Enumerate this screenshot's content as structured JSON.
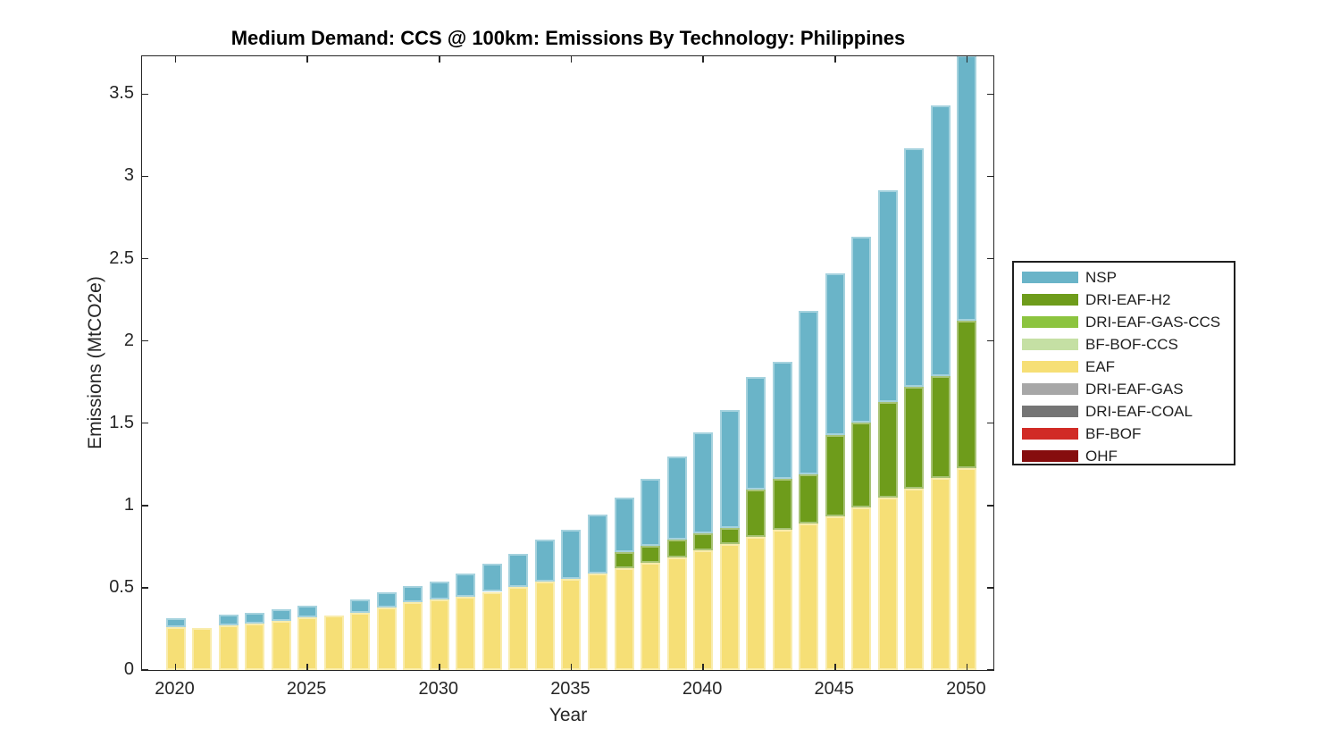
{
  "figure": {
    "title": "Medium Demand: CCS @ 100km: Emissions By Technology: Philippines",
    "xlabel": "Year",
    "ylabel": "Emissions (MtCO2e)"
  },
  "legend": {
    "position": "right-outside",
    "entries": [
      {
        "label": "NSP",
        "color": "#6AB4C8"
      },
      {
        "label": "DRI-EAF-H2",
        "color": "#6E9C1B"
      },
      {
        "label": "DRI-EAF-GAS-CCS",
        "color": "#8CC43F"
      },
      {
        "label": "BF-BOF-CCS",
        "color": "#C5E0A4"
      },
      {
        "label": "EAF",
        "color": "#F6DF76"
      },
      {
        "label": "DRI-EAF-GAS",
        "color": "#A7A7A7"
      },
      {
        "label": "DRI-EAF-COAL",
        "color": "#757575"
      },
      {
        "label": "BF-BOF",
        "color": "#D12B26"
      },
      {
        "label": "OHF",
        "color": "#860D0E"
      }
    ]
  },
  "chart_data": {
    "type": "bar",
    "stacked": true,
    "title": "Medium Demand: CCS @ 100km: Emissions By Technology: Philippines",
    "xlabel": "Year",
    "ylabel": "Emissions (MtCO2e)",
    "x": [
      2020,
      2021,
      2022,
      2023,
      2024,
      2025,
      2026,
      2027,
      2028,
      2029,
      2030,
      2031,
      2032,
      2033,
      2034,
      2035,
      2036,
      2037,
      2038,
      2039,
      2040,
      2041,
      2042,
      2043,
      2044,
      2045,
      2046,
      2047,
      2048,
      2049,
      2050
    ],
    "xticks": [
      2020,
      2025,
      2030,
      2035,
      2040,
      2045,
      2050
    ],
    "ytick_labels": [
      "0",
      "0.5",
      "1",
      "1.5",
      "2",
      "2.5",
      "3",
      "3.5"
    ],
    "yticks": [
      0,
      0.5,
      1,
      1.5,
      2,
      2.5,
      3,
      3.5
    ],
    "ylim": [
      0,
      3.73
    ],
    "grid": false,
    "note": "2050 bar exceeds the y-axis limit and is clipped flush with the top of the axes (total ~3.74 visible).",
    "stack_order_bottom_to_top": [
      "OHF",
      "BF-BOF",
      "DRI-EAF-COAL",
      "DRI-EAF-GAS",
      "EAF",
      "BF-BOF-CCS",
      "DRI-EAF-GAS-CCS",
      "DRI-EAF-H2",
      "NSP"
    ],
    "series": [
      {
        "name": "NSP",
        "color": "#6AB4C8",
        "values": [
          0.055,
          0,
          0.065,
          0.065,
          0.07,
          0.07,
          0,
          0.08,
          0.09,
          0.1,
          0.105,
          0.14,
          0.17,
          0.2,
          0.255,
          0.3,
          0.36,
          0.335,
          0.405,
          0.505,
          0.615,
          0.715,
          0.685,
          0.715,
          0.995,
          0.98,
          1.13,
          1.285,
          1.45,
          1.645,
          1.61
        ]
      },
      {
        "name": "DRI-EAF-H2",
        "color": "#6E9C1B",
        "values": [
          0,
          0,
          0,
          0,
          0,
          0,
          0,
          0,
          0,
          0,
          0,
          0,
          0,
          0,
          0,
          0,
          0,
          0.095,
          0.105,
          0.105,
          0.105,
          0.1,
          0.285,
          0.31,
          0.3,
          0.495,
          0.515,
          0.58,
          0.62,
          0.62,
          0.9
        ]
      },
      {
        "name": "DRI-EAF-GAS-CCS",
        "color": "#8CC43F",
        "values": [
          0,
          0,
          0,
          0,
          0,
          0,
          0,
          0,
          0,
          0,
          0,
          0,
          0,
          0,
          0,
          0,
          0,
          0,
          0,
          0,
          0,
          0,
          0,
          0,
          0,
          0,
          0,
          0,
          0,
          0,
          0
        ]
      },
      {
        "name": "BF-BOF-CCS",
        "color": "#C5E0A4",
        "values": [
          0,
          0,
          0,
          0,
          0,
          0,
          0,
          0,
          0,
          0,
          0,
          0,
          0,
          0,
          0,
          0,
          0,
          0,
          0,
          0,
          0,
          0,
          0,
          0,
          0,
          0,
          0,
          0,
          0,
          0,
          0
        ]
      },
      {
        "name": "EAF",
        "color": "#F6DF76",
        "values": [
          0.26,
          0.255,
          0.27,
          0.285,
          0.3,
          0.32,
          0.33,
          0.35,
          0.38,
          0.41,
          0.43,
          0.445,
          0.475,
          0.505,
          0.535,
          0.555,
          0.585,
          0.62,
          0.65,
          0.685,
          0.725,
          0.765,
          0.81,
          0.85,
          0.89,
          0.935,
          0.99,
          1.05,
          1.1,
          1.165,
          1.225
        ]
      },
      {
        "name": "DRI-EAF-GAS",
        "color": "#A7A7A7",
        "values": [
          0,
          0,
          0,
          0,
          0,
          0,
          0,
          0,
          0,
          0,
          0,
          0,
          0,
          0,
          0,
          0,
          0,
          0,
          0,
          0,
          0,
          0,
          0,
          0,
          0,
          0,
          0,
          0,
          0,
          0,
          0
        ]
      },
      {
        "name": "DRI-EAF-COAL",
        "color": "#757575",
        "values": [
          0,
          0,
          0,
          0,
          0,
          0,
          0,
          0,
          0,
          0,
          0,
          0,
          0,
          0,
          0,
          0,
          0,
          0,
          0,
          0,
          0,
          0,
          0,
          0,
          0,
          0,
          0,
          0,
          0,
          0,
          0
        ]
      },
      {
        "name": "BF-BOF",
        "color": "#D12B26",
        "values": [
          0,
          0,
          0,
          0,
          0,
          0,
          0,
          0,
          0,
          0,
          0,
          0,
          0,
          0,
          0,
          0,
          0,
          0,
          0,
          0,
          0,
          0,
          0,
          0,
          0,
          0,
          0,
          0,
          0,
          0,
          0
        ]
      },
      {
        "name": "OHF",
        "color": "#860D0E",
        "values": [
          0,
          0,
          0,
          0,
          0,
          0,
          0,
          0,
          0,
          0,
          0,
          0,
          0,
          0,
          0,
          0,
          0,
          0,
          0,
          0,
          0,
          0,
          0,
          0,
          0,
          0,
          0,
          0,
          0,
          0,
          0
        ]
      }
    ]
  }
}
